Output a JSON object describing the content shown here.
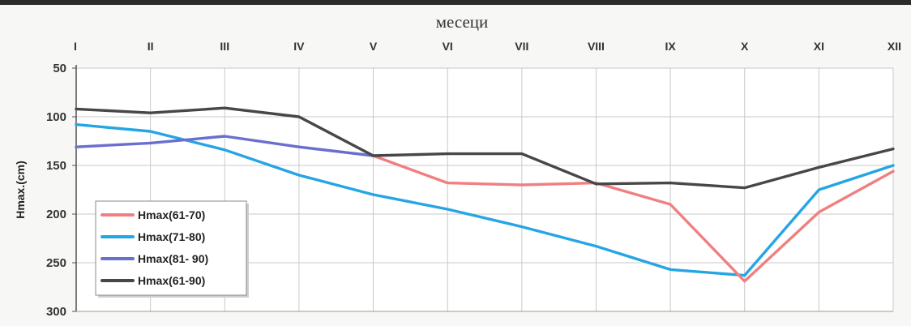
{
  "chart_data": {
    "type": "line",
    "title": "месеци",
    "xlabel": "месеци",
    "ylabel": "Hmax.(cm)",
    "categories": [
      "I",
      "II",
      "III",
      "IV",
      "V",
      "VI",
      "VII",
      "VIII",
      "IX",
      "X",
      "XI",
      "XII"
    ],
    "ylim": [
      50,
      300
    ],
    "y_inverted": true,
    "y_ticks": [
      50,
      100,
      150,
      200,
      250,
      300
    ],
    "grid": true,
    "legend_position": "bottom-left",
    "series": [
      {
        "name": "Hmax(61-70)",
        "color": "#f08080",
        "values": [
          null,
          null,
          null,
          null,
          140,
          168,
          170,
          168,
          190,
          269,
          198,
          156
        ]
      },
      {
        "name": "Hmax(71-80)",
        "color": "#26a5e4",
        "values": [
          108,
          115,
          134,
          160,
          180,
          195,
          213,
          233,
          257,
          263,
          175,
          150
        ]
      },
      {
        "name": "Hmax(81- 90)",
        "color": "#6a6fcf",
        "values": [
          131,
          127,
          120,
          131,
          140,
          null,
          null,
          null,
          null,
          null,
          null,
          null
        ]
      },
      {
        "name": "Hmax(61-90)",
        "color": "#474747",
        "values": [
          92,
          96,
          91,
          100,
          140,
          138,
          138,
          169,
          168,
          173,
          152,
          133
        ]
      }
    ]
  }
}
